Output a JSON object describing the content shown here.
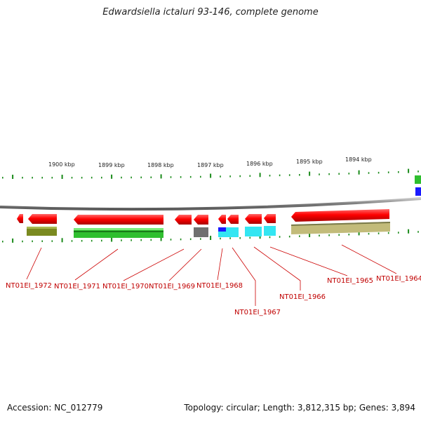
{
  "header": {
    "title": "Edwardsiella ictaluri 93-146, complete genome"
  },
  "footer": {
    "accession": "Accession: NC_012779",
    "topology": "Topology: circular; Length: 3,812,315 bp; Genes: 3,894"
  },
  "scale": {
    "ticks": [
      "1900 kbp",
      "1899 kbp",
      "1898 kbp",
      "1897 kbp",
      "1896 kbp",
      "1895 kbp",
      "1894 kbp"
    ]
  },
  "genes": [
    {
      "label": "NT01EI_1972"
    },
    {
      "label": "NT01EI_1971"
    },
    {
      "label": "NT01EI_1970"
    },
    {
      "label": "NT01EI_1969"
    },
    {
      "label": "NT01EI_1968"
    },
    {
      "label": "NT01EI_1967"
    },
    {
      "label": "NT01EI_1966"
    },
    {
      "label": "NT01EI_1965"
    },
    {
      "label": "NT01EI_1964"
    }
  ],
  "colors": {
    "gene": "#ff0000",
    "olive": "#7a8a20",
    "green": "#2fbf2f",
    "gray": "#707070",
    "cyan": "#33e6f2",
    "blue": "#1a1aff",
    "khaki": "#c2bb7a",
    "tick": "#1a8a1a",
    "backbone": "#8a8a8a",
    "leader": "#cc0000"
  }
}
